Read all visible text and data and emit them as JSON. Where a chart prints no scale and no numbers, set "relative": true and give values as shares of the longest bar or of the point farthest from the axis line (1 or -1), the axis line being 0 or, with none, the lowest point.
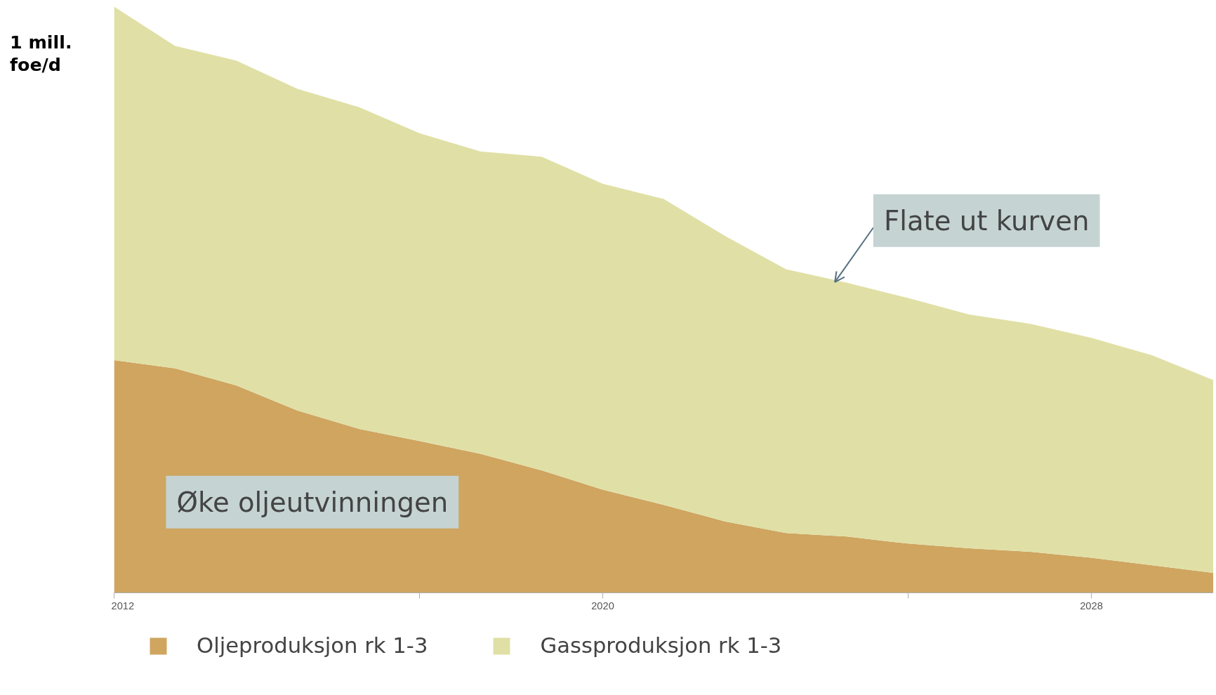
{
  "chart_data": {
    "type": "area",
    "stacked": true,
    "relative": true,
    "ylabel": "1 mill.\nfoe/d",
    "x": [
      2012,
      2013,
      2014,
      2015,
      2016,
      2017,
      2018,
      2019,
      2020,
      2021,
      2022,
      2023,
      2024,
      2025,
      2026,
      2027,
      2028,
      2029,
      2030
    ],
    "xlim": [
      2012,
      2030
    ],
    "xticks": [
      2012,
      {
        "value": 2017,
        "label": null
      },
      2020,
      {
        "value": 2025,
        "label": null
      },
      2028
    ],
    "series": [
      {
        "name": "Oljeproduksjon rk 1-3",
        "color": "#cfa560",
        "values": [
          0.397,
          0.383,
          0.354,
          0.311,
          0.28,
          0.259,
          0.237,
          0.209,
          0.176,
          0.15,
          0.122,
          0.102,
          0.096,
          0.084,
          0.076,
          0.07,
          0.06,
          0.047,
          0.034
        ]
      },
      {
        "name": "Gassproduksjon rk 1-3",
        "color": "#e0e0a6",
        "values": [
          0.603,
          0.55,
          0.554,
          0.549,
          0.549,
          0.525,
          0.516,
          0.535,
          0.522,
          0.522,
          0.487,
          0.45,
          0.433,
          0.419,
          0.399,
          0.389,
          0.375,
          0.358,
          0.329
        ]
      }
    ],
    "annotations": [
      {
        "text": "Flate ut kurven",
        "x": 2023.8,
        "y": 0.53
      },
      "Øke oljeutvinningen"
    ],
    "legend": "bottom",
    "grid": false
  }
}
